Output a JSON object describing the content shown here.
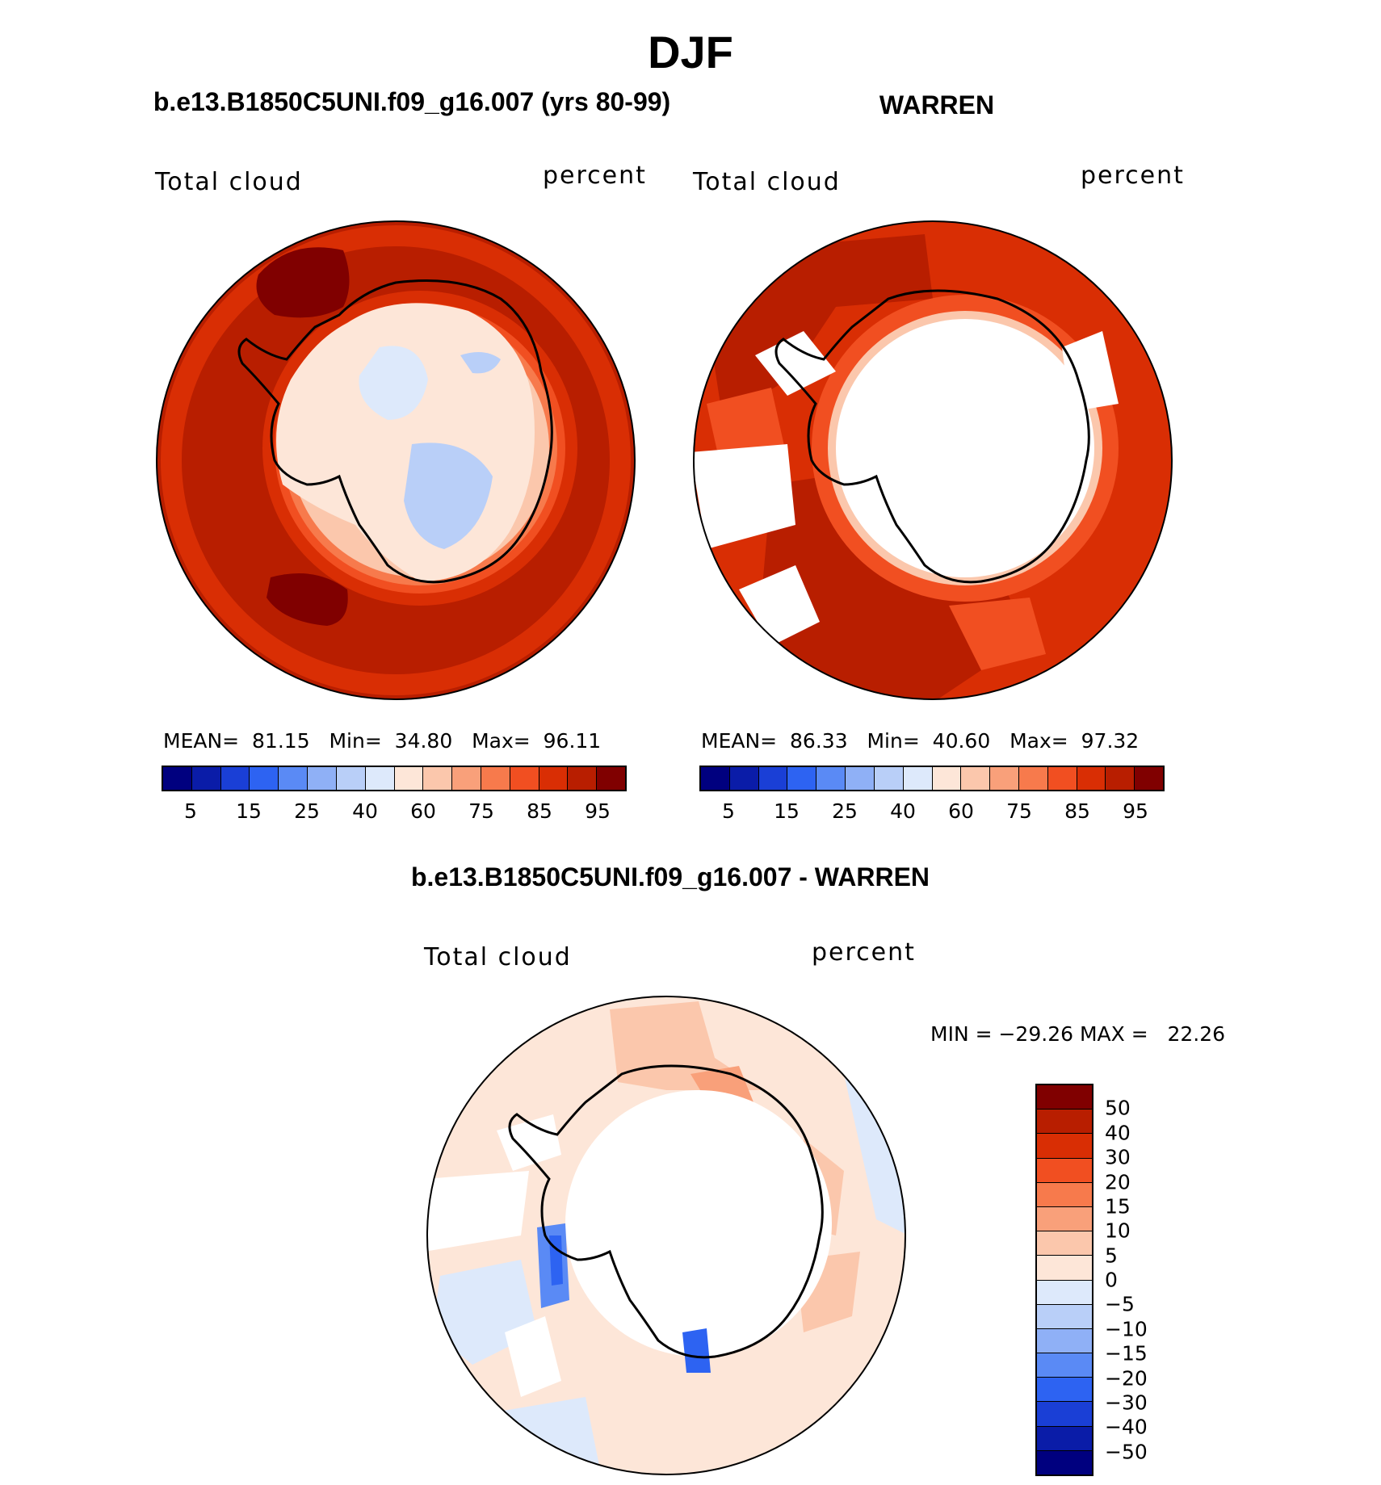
{
  "page": {
    "title": "DJF",
    "panel_left_title": "b.e13.B1850C5UNI.f09_g16.007 (yrs 80-99)",
    "panel_right_title": "WARREN",
    "panel_bottom_title": "b.e13.B1850C5UNI.f09_g16.007 - WARREN"
  },
  "panels": {
    "left": {
      "variable": "Total cloud",
      "units": "percent",
      "mean_label": "MEAN=",
      "mean": "81.15",
      "min_label": "Min=",
      "min": "34.80",
      "max_label": "Max=",
      "max": "96.11"
    },
    "right": {
      "variable": "Total cloud",
      "units": "percent",
      "mean_label": "MEAN=",
      "mean": "86.33",
      "min_label": "Min=",
      "min": "40.60",
      "max_label": "Max=",
      "max": "97.32"
    },
    "bottom": {
      "variable": "Total cloud",
      "units": "percent",
      "stats": "MIN = −29.26 MAX =   22.26"
    }
  },
  "colorbar_abs": {
    "colors": [
      "#00007f",
      "#0a1ca8",
      "#1a3fd6",
      "#2d63f2",
      "#5a8af5",
      "#8fb0f6",
      "#b9cff8",
      "#dde9fb",
      "#fde6d8",
      "#fbc7ac",
      "#f9a07a",
      "#f77a4c",
      "#f14f21",
      "#d92e04",
      "#b81e00",
      "#800000"
    ],
    "tick_labels": [
      "5",
      "15",
      "25",
      "40",
      "60",
      "75",
      "85",
      "95"
    ]
  },
  "colorbar_diff": {
    "colors": [
      "#800000",
      "#b81e00",
      "#d92e04",
      "#f14f21",
      "#f77a4c",
      "#f9a07a",
      "#fbc7ac",
      "#fde6d8",
      "#dde9fb",
      "#b9cff8",
      "#8fb0f6",
      "#5a8af5",
      "#2d63f2",
      "#1a3fd6",
      "#0a1ca8",
      "#00007f"
    ],
    "tick_labels": [
      "50",
      "40",
      "30",
      "20",
      "15",
      "10",
      "5",
      "0",
      "−5",
      "−10",
      "−15",
      "−20",
      "−30",
      "−40",
      "−50"
    ]
  }
}
